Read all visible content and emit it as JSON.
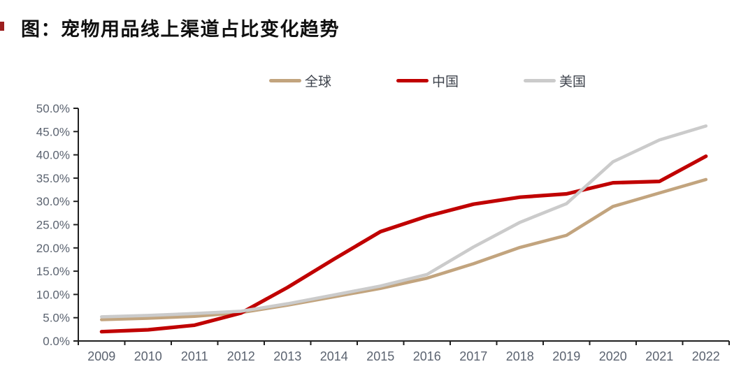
{
  "page": {
    "title": "图：宠物用品线上渠道占比变化趋势"
  },
  "chart_data": {
    "type": "line",
    "title": "图：宠物用品线上渠道占比变化趋势",
    "categories": [
      "2009",
      "2010",
      "2011",
      "2012",
      "2013",
      "2014",
      "2015",
      "2016",
      "2017",
      "2018",
      "2019",
      "2020",
      "2021",
      "2022"
    ],
    "series": [
      {
        "id": "global",
        "name": "全球",
        "color": "#c2a47e",
        "values": [
          4.6,
          4.9,
          5.3,
          6.1,
          7.7,
          9.5,
          11.3,
          13.5,
          16.6,
          20.1,
          22.7,
          28.9,
          31.8,
          34.7
        ]
      },
      {
        "id": "china",
        "name": "中国",
        "color": "#c00000",
        "values": [
          2.0,
          2.4,
          3.4,
          6.0,
          11.5,
          17.6,
          23.5,
          26.8,
          29.4,
          30.9,
          31.6,
          34.0,
          34.3,
          39.7
        ]
      },
      {
        "id": "us",
        "name": "美国",
        "color": "#cbcbcb",
        "values": [
          5.2,
          5.5,
          5.9,
          6.4,
          8.0,
          9.9,
          11.8,
          14.3,
          20.2,
          25.5,
          29.5,
          38.5,
          43.2,
          46.2
        ]
      }
    ],
    "xlabel": "",
    "ylabel": "",
    "ylim": [
      0,
      50
    ],
    "ytick_step": 5,
    "ytick_decimals": 1,
    "ytick_suffix": "%",
    "grid": false,
    "legend_position": "top-center",
    "axis_text_color": "#5b6370",
    "axis_line_color": "#1f1f1f"
  }
}
